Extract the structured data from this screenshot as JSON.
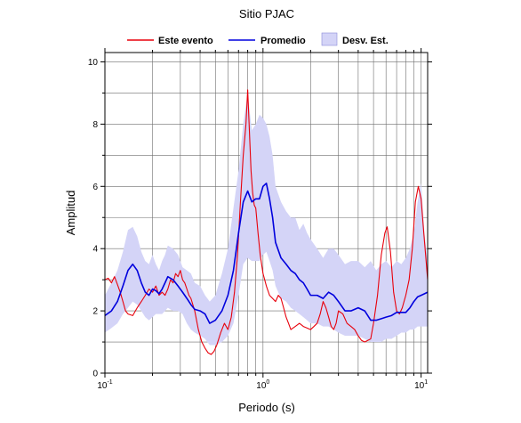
{
  "chart_data": {
    "type": "line",
    "title": "Sitio PJAC",
    "xlabel": "Periodo (s)",
    "ylabel": "Amplitud",
    "xscale": "log",
    "xlim": [
      0.1,
      11
    ],
    "ylim": [
      0,
      10.3
    ],
    "grid": true,
    "legend_position": "top-center",
    "y_ticks": [
      0,
      2,
      4,
      6,
      8,
      10
    ],
    "x_ticks": [
      {
        "value": 0.1,
        "base": "10",
        "exp": "-1"
      },
      {
        "value": 1,
        "base": "10",
        "exp": "0"
      },
      {
        "value": 10,
        "base": "10",
        "exp": "1"
      }
    ],
    "legend": [
      {
        "label": "Este evento",
        "kind": "line",
        "color": "#e8000b"
      },
      {
        "label": "Promedio",
        "kind": "line",
        "color": "#0000dd"
      },
      {
        "label": "Desv. Est.",
        "kind": "band",
        "color": "#d4d4f7"
      }
    ],
    "series": [
      {
        "name": "Este evento",
        "color": "#e8000b",
        "x": [
          0.1,
          0.105,
          0.11,
          0.115,
          0.12,
          0.125,
          0.13,
          0.135,
          0.14,
          0.15,
          0.16,
          0.17,
          0.18,
          0.19,
          0.2,
          0.21,
          0.22,
          0.23,
          0.24,
          0.25,
          0.26,
          0.27,
          0.28,
          0.29,
          0.3,
          0.31,
          0.32,
          0.33,
          0.34,
          0.35,
          0.37,
          0.39,
          0.41,
          0.43,
          0.45,
          0.47,
          0.49,
          0.51,
          0.54,
          0.57,
          0.6,
          0.63,
          0.66,
          0.69,
          0.72,
          0.75,
          0.78,
          0.8,
          0.82,
          0.84,
          0.86,
          0.88,
          0.9,
          0.93,
          0.96,
          1.0,
          1.05,
          1.1,
          1.15,
          1.2,
          1.25,
          1.3,
          1.35,
          1.4,
          1.45,
          1.5,
          1.6,
          1.7,
          1.8,
          1.9,
          2.0,
          2.1,
          2.2,
          2.3,
          2.4,
          2.5,
          2.6,
          2.7,
          2.8,
          2.9,
          3.0,
          3.2,
          3.4,
          3.6,
          3.8,
          4.0,
          4.2,
          4.4,
          4.6,
          4.8,
          5.0,
          5.3,
          5.6,
          5.9,
          6.1,
          6.4,
          6.7,
          7.0,
          7.3,
          7.6,
          8.0,
          8.4,
          8.8,
          9.2,
          9.6,
          10.0,
          10.4,
          10.8,
          11.0
        ],
        "values": [
          3.0,
          3.05,
          2.9,
          3.1,
          2.85,
          2.6,
          2.3,
          2.0,
          1.9,
          1.85,
          2.1,
          2.3,
          2.5,
          2.7,
          2.6,
          2.8,
          2.5,
          2.6,
          2.5,
          2.7,
          3.0,
          2.9,
          3.2,
          3.1,
          3.3,
          3.0,
          2.9,
          2.7,
          2.5,
          2.4,
          2.0,
          1.4,
          1.0,
          0.8,
          0.65,
          0.6,
          0.7,
          0.9,
          1.3,
          1.6,
          1.4,
          1.8,
          2.6,
          3.8,
          5.5,
          7.0,
          8.0,
          9.1,
          7.8,
          6.5,
          5.8,
          5.4,
          5.3,
          4.5,
          3.8,
          3.2,
          2.8,
          2.5,
          2.4,
          2.3,
          2.5,
          2.4,
          2.1,
          1.8,
          1.6,
          1.4,
          1.5,
          1.6,
          1.5,
          1.45,
          1.4,
          1.5,
          1.6,
          1.9,
          2.3,
          2.1,
          1.8,
          1.5,
          1.4,
          1.6,
          2.0,
          1.9,
          1.6,
          1.5,
          1.4,
          1.2,
          1.05,
          1.0,
          1.05,
          1.1,
          1.6,
          2.5,
          3.8,
          4.5,
          4.7,
          3.9,
          2.6,
          2.0,
          1.9,
          2.1,
          2.5,
          3.0,
          4.0,
          5.5,
          6.0,
          5.6,
          4.5,
          3.5,
          3.0
        ]
      },
      {
        "name": "Promedio",
        "color": "#0000dd",
        "x": [
          0.1,
          0.11,
          0.12,
          0.13,
          0.14,
          0.15,
          0.16,
          0.17,
          0.18,
          0.19,
          0.2,
          0.21,
          0.22,
          0.23,
          0.24,
          0.25,
          0.27,
          0.29,
          0.31,
          0.33,
          0.35,
          0.37,
          0.4,
          0.43,
          0.46,
          0.5,
          0.55,
          0.6,
          0.65,
          0.7,
          0.75,
          0.8,
          0.85,
          0.9,
          0.95,
          1.0,
          1.05,
          1.1,
          1.15,
          1.2,
          1.3,
          1.4,
          1.5,
          1.6,
          1.7,
          1.8,
          1.9,
          2.0,
          2.2,
          2.4,
          2.6,
          2.8,
          3.0,
          3.3,
          3.6,
          4.0,
          4.4,
          4.8,
          5.2,
          5.6,
          6.0,
          6.5,
          7.0,
          7.5,
          8.0,
          8.5,
          9.0,
          9.5,
          10.0,
          10.5,
          11.0
        ],
        "values": [
          1.85,
          2.0,
          2.3,
          2.8,
          3.3,
          3.5,
          3.3,
          2.9,
          2.6,
          2.5,
          2.7,
          2.65,
          2.55,
          2.7,
          2.9,
          3.1,
          3.0,
          2.8,
          2.6,
          2.4,
          2.2,
          2.05,
          2.0,
          1.9,
          1.6,
          1.7,
          2.0,
          2.5,
          3.3,
          4.5,
          5.5,
          5.85,
          5.5,
          5.6,
          5.6,
          6.0,
          6.1,
          5.6,
          5.0,
          4.2,
          3.7,
          3.5,
          3.3,
          3.2,
          3.0,
          2.9,
          2.7,
          2.5,
          2.5,
          2.4,
          2.6,
          2.5,
          2.3,
          2.0,
          2.0,
          2.1,
          2.0,
          1.7,
          1.7,
          1.75,
          1.8,
          1.85,
          1.95,
          1.95,
          1.95,
          2.1,
          2.3,
          2.45,
          2.5,
          2.55,
          2.6
        ]
      }
    ],
    "band": {
      "name": "Desv. Est.",
      "color": "#d4d4f7",
      "x": [
        0.1,
        0.11,
        0.12,
        0.13,
        0.14,
        0.15,
        0.16,
        0.17,
        0.18,
        0.19,
        0.2,
        0.21,
        0.22,
        0.23,
        0.24,
        0.25,
        0.27,
        0.29,
        0.31,
        0.33,
        0.35,
        0.37,
        0.4,
        0.43,
        0.46,
        0.5,
        0.55,
        0.6,
        0.65,
        0.7,
        0.75,
        0.8,
        0.85,
        0.9,
        0.95,
        1.0,
        1.05,
        1.1,
        1.15,
        1.2,
        1.3,
        1.4,
        1.5,
        1.6,
        1.7,
        1.8,
        1.9,
        2.0,
        2.2,
        2.4,
        2.6,
        2.8,
        3.0,
        3.3,
        3.6,
        4.0,
        4.4,
        4.8,
        5.2,
        5.6,
        6.0,
        6.5,
        7.0,
        7.5,
        8.0,
        8.5,
        9.0,
        9.5,
        10.0,
        10.5,
        11.0
      ],
      "upper": [
        2.5,
        2.9,
        3.3,
        3.9,
        4.6,
        4.7,
        4.4,
        3.9,
        3.6,
        3.5,
        3.8,
        3.5,
        3.3,
        3.6,
        3.8,
        4.1,
        4.0,
        3.8,
        3.4,
        3.3,
        3.2,
        2.9,
        2.8,
        2.5,
        2.3,
        2.5,
        3.2,
        4.0,
        5.3,
        6.5,
        8.0,
        9.0,
        7.8,
        8.0,
        8.3,
        8.2,
        8.0,
        7.6,
        7.0,
        6.0,
        5.5,
        5.2,
        5.0,
        5.0,
        4.6,
        4.8,
        4.5,
        4.3,
        4.0,
        3.7,
        4.0,
        4.0,
        3.8,
        3.5,
        3.6,
        3.6,
        3.4,
        3.6,
        3.3,
        3.5,
        3.6,
        3.4,
        3.6,
        3.5,
        3.7,
        4.0,
        4.5,
        5.5,
        6.1,
        4.5,
        3.6
      ],
      "lower": [
        1.3,
        1.45,
        1.6,
        1.9,
        2.1,
        2.3,
        2.2,
        2.0,
        1.8,
        1.7,
        1.8,
        1.9,
        1.9,
        1.9,
        2.0,
        2.1,
        2.0,
        2.0,
        1.9,
        1.6,
        1.4,
        1.3,
        1.2,
        1.1,
        0.9,
        0.9,
        1.0,
        1.2,
        1.6,
        2.5,
        3.5,
        3.7,
        3.6,
        3.6,
        3.6,
        3.8,
        3.9,
        3.6,
        3.3,
        2.8,
        2.4,
        2.3,
        2.1,
        2.0,
        1.9,
        1.8,
        1.7,
        1.6,
        1.6,
        1.5,
        1.5,
        1.4,
        1.3,
        1.2,
        1.2,
        1.2,
        1.1,
        1.0,
        1.0,
        1.0,
        1.1,
        1.1,
        1.2,
        1.3,
        1.3,
        1.4,
        1.4,
        1.5,
        1.5,
        1.5,
        1.5
      ]
    }
  }
}
